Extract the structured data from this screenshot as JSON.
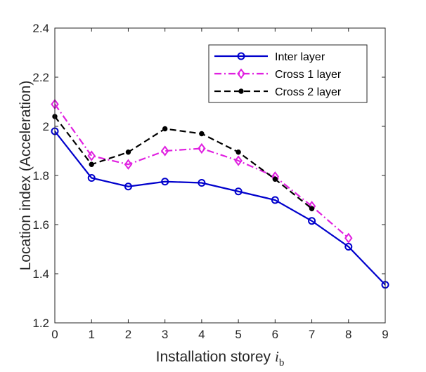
{
  "chart_data": {
    "type": "line",
    "xlabel": "Installation storey",
    "xlabel_symbol": "i",
    "xlabel_subscript": "b",
    "ylabel": "Location index (Acceleration)",
    "xlim": [
      0,
      9
    ],
    "ylim": [
      1.2,
      2.4
    ],
    "xticks": [
      "0",
      "1",
      "2",
      "3",
      "4",
      "5",
      "6",
      "7",
      "8",
      "9"
    ],
    "yticks": [
      "1.2",
      "1.4",
      "1.6",
      "1.8",
      "2",
      "2.2",
      "2.4"
    ],
    "grid": false,
    "legend_position": "top-right",
    "series": [
      {
        "name": "Inter layer",
        "color": "#0000CC",
        "line_style": "solid",
        "marker": "circle",
        "x": [
          0,
          1,
          2,
          3,
          4,
          5,
          6,
          7,
          8,
          9
        ],
        "y": [
          1.98,
          1.79,
          1.755,
          1.775,
          1.77,
          1.735,
          1.7,
          1.615,
          1.51,
          1.355
        ]
      },
      {
        "name": "Cross 1 layer",
        "color": "#E020E0",
        "line_style": "dashdot",
        "marker": "diamond",
        "x": [
          0,
          1,
          2,
          3,
          4,
          5,
          6,
          7,
          8
        ],
        "y": [
          2.09,
          1.88,
          1.845,
          1.9,
          1.91,
          1.86,
          1.795,
          1.675,
          1.545
        ]
      },
      {
        "name": "Cross 2 layer",
        "color": "#000000",
        "line_style": "dashed",
        "marker": "dot",
        "x": [
          0,
          1,
          2,
          3,
          4,
          5,
          6,
          7
        ],
        "y": [
          2.04,
          1.845,
          1.895,
          1.99,
          1.97,
          1.895,
          1.785,
          1.665
        ]
      }
    ]
  }
}
